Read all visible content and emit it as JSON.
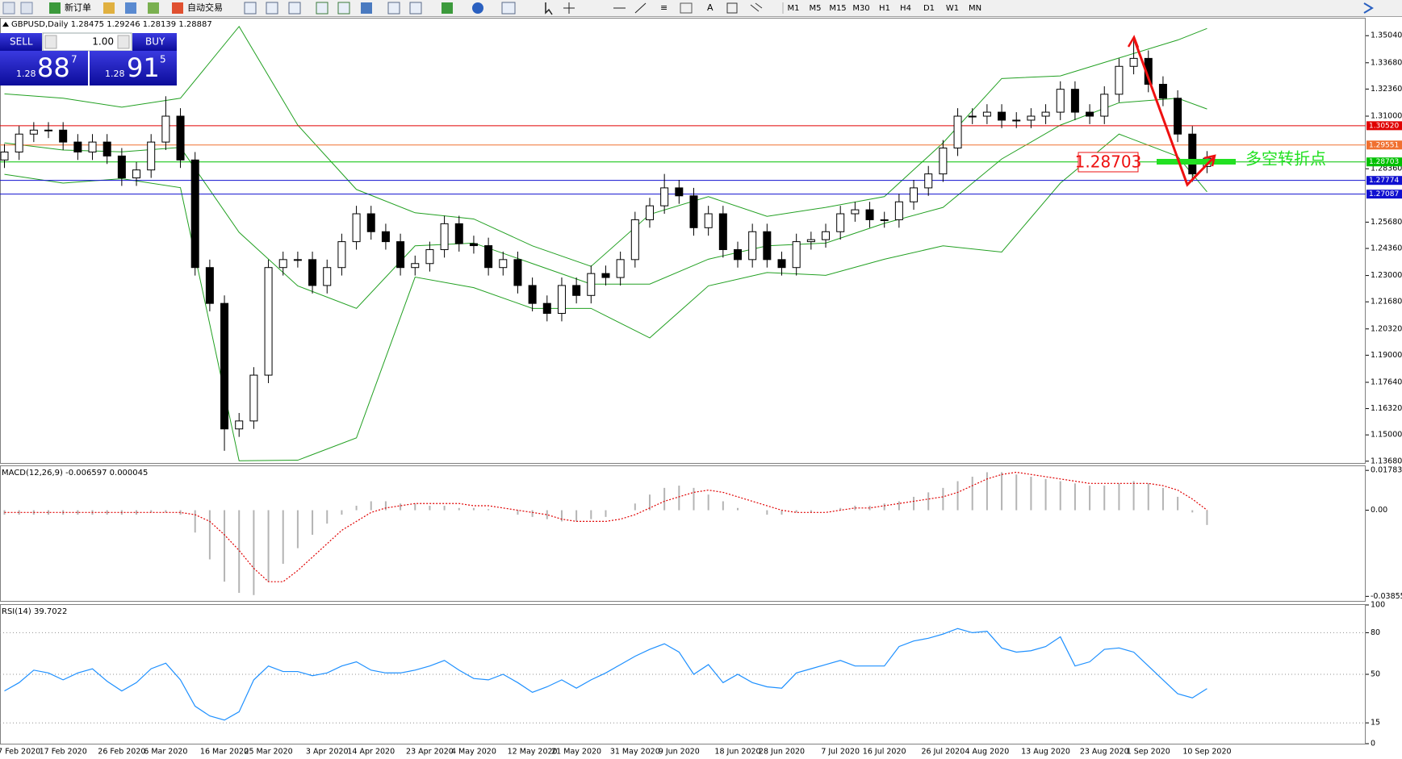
{
  "toolbar": {
    "new_order": "新订单",
    "auto_trading": "自动交易",
    "timeframes": [
      "M1",
      "M5",
      "M15",
      "M30",
      "H1",
      "H4",
      "D1",
      "W1",
      "MN"
    ]
  },
  "trade_panel": {
    "sell": "SELL",
    "lot": "1.00",
    "buy": "BUY",
    "bid": [
      "1.28",
      "88",
      "7"
    ],
    "ask": [
      "1.28",
      "91",
      "5"
    ]
  },
  "chart_data": [
    {
      "type": "candlestick",
      "title": "GBPUSD,Daily",
      "categories": [
        null,
        "7 Feb 2020",
        null,
        null,
        "17 Feb 2020",
        null,
        null,
        null,
        "26 Feb 2020",
        null,
        null,
        "6 Mar 2020",
        null,
        null,
        null,
        "16 Mar 2020",
        null,
        null,
        "25 Mar 2020",
        null,
        null,
        null,
        "3 Apr 2020",
        null,
        null,
        "14 Apr 2020",
        null,
        null,
        null,
        "23 Apr 2020",
        null,
        null,
        "4 May 2020",
        null,
        null,
        null,
        "12 May 2020",
        null,
        null,
        "21 May 2020",
        null,
        null,
        null,
        "31 May 2020",
        null,
        null,
        "9 Jun 2020",
        null,
        null,
        null,
        "18 Jun 2020",
        null,
        null,
        "28 Jun 2020",
        null,
        null,
        null,
        "7 Jul 2020",
        null,
        null,
        "16 Jul 2020",
        null,
        null,
        null,
        "26 Jul 2020",
        null,
        null,
        "4 Aug 2020",
        null,
        null,
        null,
        "13 Aug 2020",
        null,
        null,
        null,
        "23 Aug 2020",
        null,
        null,
        "1 Sep 2020",
        null,
        null,
        null,
        "10 Sep 2020"
      ],
      "open": [
        1.288,
        1.292,
        1.301,
        1.303,
        1.303,
        1.297,
        1.292,
        1.297,
        1.29,
        1.279,
        1.283,
        1.297,
        1.31,
        1.288,
        1.234,
        1.216,
        1.153,
        1.157,
        1.18,
        1.234,
        1.238,
        1.238,
        1.225,
        1.234,
        1.247,
        1.261,
        1.252,
        1.247,
        1.234,
        1.236,
        1.243,
        1.256,
        1.246,
        1.245,
        1.234,
        1.238,
        1.225,
        1.216,
        1.211,
        1.225,
        1.22,
        1.231,
        1.229,
        1.238,
        1.258,
        1.265,
        1.274,
        1.27,
        1.254,
        1.261,
        1.243,
        1.238,
        1.252,
        1.238,
        1.234,
        1.247,
        1.248,
        1.252,
        1.261,
        1.263,
        1.258,
        1.258,
        1.267,
        1.274,
        1.281,
        1.294,
        1.31,
        1.31,
        1.312,
        1.308,
        1.308,
        1.31,
        1.312,
        1.3235,
        1.312,
        1.31,
        1.321,
        1.335,
        1.339,
        1.326,
        1.319,
        1.301,
        1.28475
      ],
      "high": [
        1.296,
        1.305,
        1.307,
        1.307,
        1.307,
        1.301,
        1.301,
        1.301,
        1.294,
        1.287,
        1.301,
        1.32,
        1.314,
        1.292,
        1.238,
        1.22,
        1.161,
        1.184,
        1.238,
        1.242,
        1.242,
        1.242,
        1.238,
        1.251,
        1.265,
        1.265,
        1.256,
        1.251,
        1.24,
        1.247,
        1.26,
        1.26,
        1.25,
        1.249,
        1.242,
        1.242,
        1.229,
        1.22,
        1.229,
        1.229,
        1.235,
        1.235,
        1.242,
        1.262,
        1.269,
        1.281,
        1.278,
        1.274,
        1.265,
        1.265,
        1.247,
        1.256,
        1.256,
        1.242,
        1.251,
        1.252,
        1.256,
        1.265,
        1.267,
        1.267,
        1.262,
        1.271,
        1.278,
        1.285,
        1.298,
        1.314,
        1.314,
        1.316,
        1.316,
        1.312,
        1.314,
        1.316,
        1.3275,
        1.3275,
        1.316,
        1.325,
        1.339,
        1.348,
        1.343,
        1.33,
        1.323,
        1.305,
        1.29246
      ],
      "low": [
        1.284,
        1.288,
        1.297,
        1.299,
        1.293,
        1.288,
        1.288,
        1.286,
        1.275,
        1.275,
        1.279,
        1.293,
        1.284,
        1.23,
        1.212,
        1.142,
        1.149,
        1.153,
        1.176,
        1.23,
        1.234,
        1.221,
        1.221,
        1.23,
        1.243,
        1.248,
        1.243,
        1.23,
        1.23,
        1.232,
        1.239,
        1.242,
        1.241,
        1.23,
        1.23,
        1.221,
        1.212,
        1.207,
        1.207,
        1.216,
        1.216,
        1.225,
        1.225,
        1.234,
        1.254,
        1.261,
        1.266,
        1.25,
        1.25,
        1.239,
        1.234,
        1.234,
        1.234,
        1.23,
        1.23,
        1.243,
        1.244,
        1.248,
        1.257,
        1.254,
        1.254,
        1.254,
        1.263,
        1.27,
        1.277,
        1.29,
        1.306,
        1.306,
        1.304,
        1.304,
        1.304,
        1.306,
        1.308,
        1.308,
        1.306,
        1.306,
        1.317,
        1.331,
        1.322,
        1.315,
        1.297,
        1.277,
        1.28139
      ],
      "close": [
        1.292,
        1.301,
        1.303,
        1.303,
        1.297,
        1.292,
        1.297,
        1.29,
        1.279,
        1.283,
        1.297,
        1.31,
        1.288,
        1.234,
        1.216,
        1.153,
        1.157,
        1.18,
        1.234,
        1.238,
        1.238,
        1.225,
        1.234,
        1.247,
        1.261,
        1.252,
        1.247,
        1.234,
        1.236,
        1.243,
        1.256,
        1.246,
        1.245,
        1.234,
        1.238,
        1.225,
        1.216,
        1.211,
        1.225,
        1.22,
        1.231,
        1.229,
        1.238,
        1.258,
        1.265,
        1.274,
        1.27,
        1.254,
        1.261,
        1.243,
        1.238,
        1.252,
        1.238,
        1.234,
        1.247,
        1.248,
        1.252,
        1.261,
        1.263,
        1.258,
        1.258,
        1.267,
        1.274,
        1.281,
        1.294,
        1.31,
        1.31,
        1.312,
        1.308,
        1.308,
        1.31,
        1.312,
        1.3235,
        1.312,
        1.31,
        1.321,
        1.335,
        1.339,
        1.326,
        1.319,
        1.301,
        1.281,
        1.28887
      ],
      "up_color": "#ffffff",
      "down_color": "#000000",
      "bands": {
        "color": "#22a022",
        "x": [
          0,
          4,
          8,
          12,
          16,
          20,
          24,
          28,
          32,
          36,
          40,
          44,
          48,
          52,
          56,
          60,
          64,
          68,
          72,
          76,
          80,
          82
        ],
        "upper": [
          1.3212,
          1.319,
          1.3145,
          1.319,
          1.355,
          1.3055,
          1.2732,
          1.2615,
          1.2584,
          1.2449,
          1.2346,
          1.2607,
          1.2696,
          1.2597,
          1.2642,
          1.2696,
          1.2966,
          1.3289,
          1.3302,
          1.3392,
          1.3482,
          1.354
        ],
        "middle": [
          1.2966,
          1.293,
          1.2921,
          1.2943,
          1.2517,
          1.2248,
          1.2135,
          1.2449,
          1.2463,
          1.236,
          1.2257,
          1.2257,
          1.2382,
          1.2449,
          1.2463,
          1.2562,
          1.2642,
          1.2885,
          1.3055,
          1.3167,
          1.319,
          1.3136
        ],
        "lower": [
          1.2808,
          1.2764,
          1.2786,
          1.2741,
          1.137,
          1.1373,
          1.1485,
          1.2292,
          1.2239,
          1.2135,
          1.2135,
          1.1987,
          1.2248,
          1.2315,
          1.2301,
          1.2382,
          1.2449,
          1.2418,
          1.2764,
          1.301,
          1.2898,
          1.272
        ]
      },
      "levels": [
        {
          "value": 1.3052,
          "label": "1.30520",
          "color": "#e00000"
        },
        {
          "value": 1.29551,
          "label": "1.29551",
          "color": "#f07030"
        },
        {
          "value": 1.28703,
          "label": "1.28703",
          "color": "#00c000"
        },
        {
          "value": 1.27774,
          "label": "1.27774",
          "color": "#1010d0"
        },
        {
          "value": 1.27087,
          "label": "1.27087",
          "color": "#1010d0"
        }
      ],
      "annotation": "多空转折点",
      "ylim": [
        1.1359,
        1.3594
      ],
      "yticks": [
        {
          "value": 1.3504,
          "label": "1.35040"
        },
        {
          "value": 1.3368,
          "label": "1.33680"
        },
        {
          "value": 1.3236,
          "label": "1.32360"
        },
        {
          "value": 1.31,
          "label": "1.31000"
        },
        {
          "value": 1.2836,
          "label": "1.28360"
        },
        {
          "value": 1.2568,
          "label": "1.25680"
        },
        {
          "value": 1.2436,
          "label": "1.24360"
        },
        {
          "value": 1.23,
          "label": "1.23000"
        },
        {
          "value": 1.2168,
          "label": "1.21680"
        },
        {
          "value": 1.2032,
          "label": "1.20320"
        },
        {
          "value": 1.19,
          "label": "1.19000"
        },
        {
          "value": 1.1764,
          "label": "1.17640"
        },
        {
          "value": 1.1632,
          "label": "1.16320"
        },
        {
          "value": 1.15,
          "label": "1.15000"
        },
        {
          "value": 1.1368,
          "label": "1.13680"
        }
      ]
    },
    {
      "type": "macd",
      "title": "MACD(12,26,9)",
      "histogram": [
        -0.002,
        -0.002,
        -0.002,
        -0.002,
        -0.002,
        -0.002,
        -0.002,
        -0.002,
        -0.002,
        -0.002,
        -0.001,
        -0.001,
        -0.002,
        -0.01,
        -0.022,
        -0.032,
        -0.037,
        -0.038,
        -0.032,
        -0.024,
        -0.017,
        -0.011,
        -0.006,
        -0.002,
        0.002,
        0.004,
        0.004,
        0.003,
        0.003,
        0.002,
        0.002,
        0.001,
        0.001,
        0.0005,
        0,
        -0.002,
        -0.003,
        -0.004,
        -0.005,
        -0.005,
        -0.004,
        -0.003,
        0,
        0.003,
        0.007,
        0.01,
        0.011,
        0.01,
        0.007,
        0.004,
        0.001,
        0,
        -0.002,
        -0.002,
        -0.001,
        -0.001,
        0,
        0.001,
        0.002,
        0.002,
        0.003,
        0.004,
        0.006,
        0.008,
        0.01,
        0.013,
        0.015,
        0.017,
        0.017,
        0.016,
        0.015,
        0.014,
        0.013,
        0.012,
        0.011,
        0.011,
        0.012,
        0.013,
        0.012,
        0.01,
        0.006,
        -0.001,
        -0.006597
      ],
      "signal": [
        -0.001,
        -0.001,
        -0.001,
        -0.001,
        -0.001,
        -0.001,
        -0.001,
        -0.001,
        -0.001,
        -0.001,
        -0.001,
        -0.001,
        -0.001,
        -0.002,
        -0.005,
        -0.011,
        -0.018,
        -0.026,
        -0.032,
        -0.032,
        -0.027,
        -0.021,
        -0.015,
        -0.009,
        -0.005,
        -0.001,
        0.001,
        0.002,
        0.003,
        0.003,
        0.003,
        0.003,
        0.002,
        0.002,
        0.001,
        0,
        -0.001,
        -0.002,
        -0.004,
        -0.005,
        -0.005,
        -0.005,
        -0.004,
        -0.002,
        0.001,
        0.004,
        0.006,
        0.008,
        0.009,
        0.008,
        0.006,
        0.004,
        0.002,
        0,
        -0.001,
        -0.001,
        -0.001,
        0,
        0.001,
        0.001,
        0.002,
        0.003,
        0.004,
        0.005,
        0.006,
        0.008,
        0.011,
        0.014,
        0.016,
        0.017,
        0.016,
        0.015,
        0.014,
        0.013,
        0.012,
        0.012,
        0.012,
        0.012,
        0.012,
        0.011,
        0.009,
        0.005,
        4.5e-05
      ],
      "hist_color": "#b4b4b4",
      "signal_color": "#e00000",
      "ylim": [
        -0.0406,
        0.0197
      ],
      "yticks": [
        0.017833,
        {
          "value": 0,
          "label": "0.00"
        },
        -0.038559
      ]
    },
    {
      "type": "line",
      "title": "RSI(14)",
      "values": [
        38,
        44,
        53,
        51,
        46,
        51,
        54,
        45,
        38,
        44,
        54,
        58,
        46,
        27,
        20,
        17,
        23,
        46,
        56,
        52,
        52,
        49,
        51,
        56,
        59,
        53,
        51,
        51,
        53,
        56,
        60,
        53,
        47,
        46,
        50,
        44,
        37,
        41,
        46,
        40,
        46,
        51,
        57,
        63,
        68,
        72,
        66,
        50,
        57,
        44,
        50,
        44,
        41,
        40,
        51,
        54,
        57,
        60,
        56,
        56,
        56,
        70,
        74,
        76,
        79,
        83,
        80,
        81,
        69,
        66,
        67,
        70,
        77,
        56,
        59,
        68,
        69,
        66,
        56,
        46,
        36,
        33,
        39.7022
      ],
      "color": "#1e90ff",
      "ylim": [
        0,
        100
      ],
      "yticks": [
        100,
        80,
        50,
        15,
        0
      ]
    }
  ]
}
